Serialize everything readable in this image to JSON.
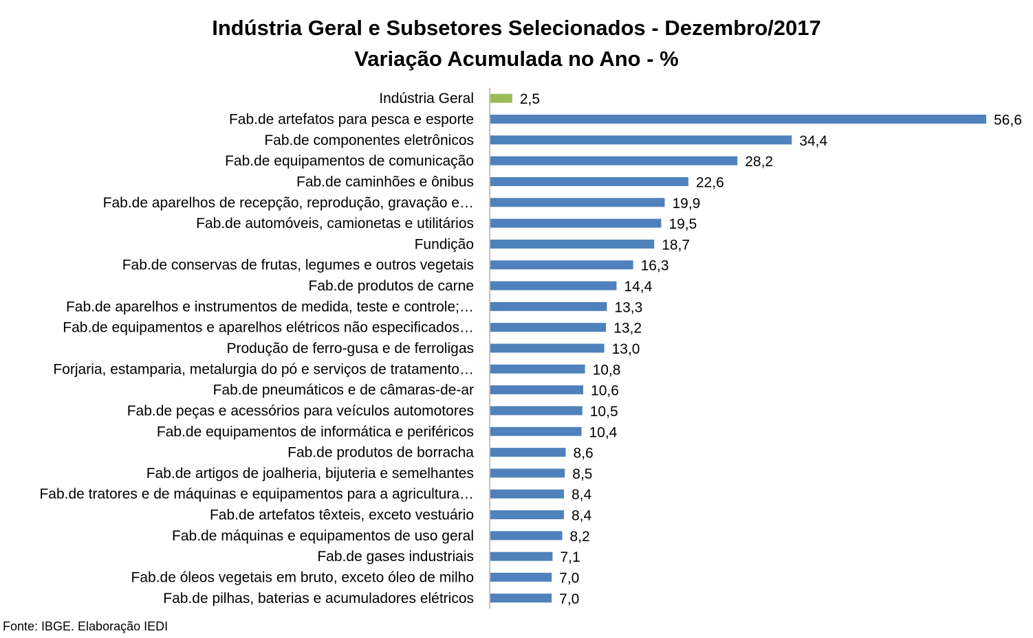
{
  "chart_data": {
    "type": "bar",
    "orientation": "horizontal",
    "title": "Indústria Geral e Subsetores Selecionados - Dezembro/2017",
    "subtitle": "Variação Acumulada no Ano - %",
    "categories": [
      "Indústria Geral",
      "Fab.de artefatos para pesca e esporte",
      "Fab.de componentes eletrônicos",
      "Fab.de equipamentos de comunicação",
      "Fab.de caminhões e ônibus",
      "Fab.de aparelhos de recepção, reprodução, gravação e…",
      "Fab.de automóveis, camionetas e utilitários",
      "Fundição",
      "Fab.de conservas de frutas, legumes e outros vegetais",
      "Fab.de produtos de carne",
      "Fab.de aparelhos e instrumentos de medida, teste e controle;…",
      "Fab.de equipamentos e aparelhos elétricos não especificados…",
      "Produção de ferro-gusa e de ferroligas",
      "Forjaria, estamparia, metalurgia do pó e serviços de tratamento…",
      "Fab.de pneumáticos e de câmaras-de-ar",
      "Fab.de peças e acessórios para veículos automotores",
      "Fab.de equipamentos de informática e periféricos",
      "Fab.de produtos de borracha",
      "Fab.de artigos de joalheria, bijuteria e semelhantes",
      "Fab.de tratores e de máquinas e equipamentos para a agricultura…",
      "Fab.de artefatos têxteis, exceto vestuário",
      "Fab.de máquinas e equipamentos de uso geral",
      "Fab.de gases industriais",
      "Fab.de óleos vegetais em bruto, exceto óleo de milho",
      "Fab.de pilhas, baterias e acumuladores elétricos"
    ],
    "values": [
      2.5,
      56.6,
      34.4,
      28.2,
      22.6,
      19.9,
      19.5,
      18.7,
      16.3,
      14.4,
      13.3,
      13.2,
      13.0,
      10.8,
      10.6,
      10.5,
      10.4,
      8.6,
      8.5,
      8.4,
      8.4,
      8.2,
      7.1,
      7.0,
      7.0
    ],
    "value_labels": [
      "2,5",
      "56,6",
      "34,4",
      "28,2",
      "22,6",
      "19,9",
      "19,5",
      "18,7",
      "16,3",
      "14,4",
      "13,3",
      "13,2",
      "13,0",
      "10,8",
      "10,6",
      "10,5",
      "10,4",
      "8,6",
      "8,5",
      "8,4",
      "8,4",
      "8,2",
      "7,1",
      "7,0",
      "7,0"
    ],
    "bar_colors": [
      "#9BBB59",
      "#4F81BD",
      "#4F81BD",
      "#4F81BD",
      "#4F81BD",
      "#4F81BD",
      "#4F81BD",
      "#4F81BD",
      "#4F81BD",
      "#4F81BD",
      "#4F81BD",
      "#4F81BD",
      "#4F81BD",
      "#4F81BD",
      "#4F81BD",
      "#4F81BD",
      "#4F81BD",
      "#4F81BD",
      "#4F81BD",
      "#4F81BD",
      "#4F81BD",
      "#4F81BD",
      "#4F81BD",
      "#4F81BD",
      "#4F81BD"
    ],
    "xlim": [
      0,
      56.6
    ],
    "xlabel": "",
    "ylabel": "",
    "grid": false,
    "legend": "none"
  },
  "source": "Fonte: IBGE. Elaboração IEDI"
}
